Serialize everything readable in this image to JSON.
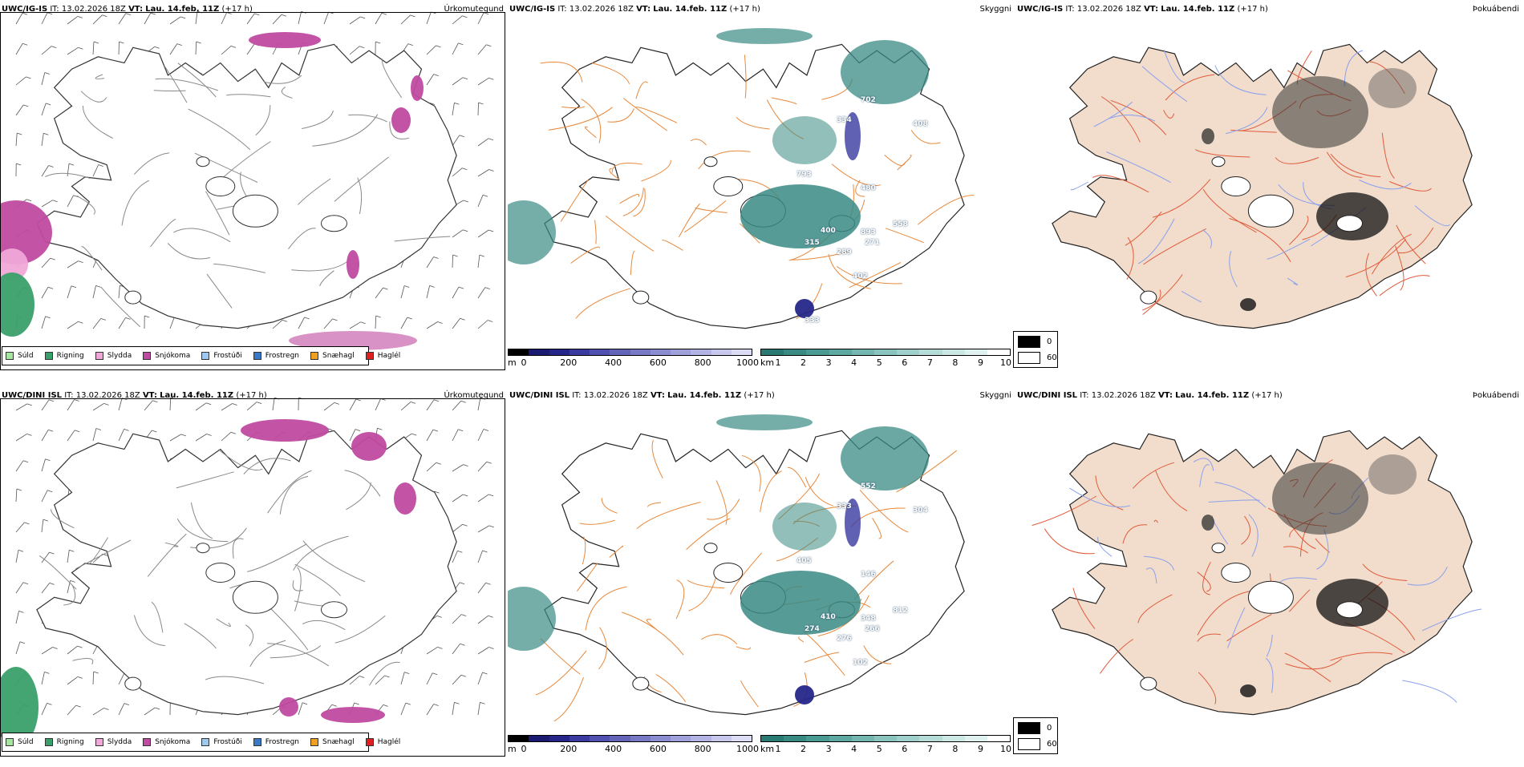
{
  "rows": [
    {
      "model": "UWC/IG-IS",
      "it_label": "IT:",
      "it_value": "13.02.2026 18Z",
      "vt_label": "VT:",
      "vt_value": "Lau. 14.feb. 11Z",
      "lead": "(+17 h)",
      "panels": {
        "precip_title": "Úrkomutegund",
        "vis_title": "Skyggni",
        "cloud_title": "Þokuábendi"
      },
      "elevation_labels": [
        "334",
        "408",
        "702",
        "793",
        "480",
        "400",
        "893",
        "558",
        "315",
        "271",
        "289",
        "402",
        "333"
      ]
    },
    {
      "model": "UWC/DINI ISL",
      "it_label": "IT:",
      "it_value": "13.02.2026 18Z",
      "vt_label": "VT:",
      "vt_value": "Lau. 14.feb. 11Z",
      "lead": "(+17 h)",
      "panels": {
        "precip_title": "Úrkomutegund",
        "vis_title": "Skyggni",
        "cloud_title": "Þokuábendi"
      },
      "elevation_labels": [
        "333",
        "304",
        "552",
        "405",
        "146",
        "410",
        "348",
        "812",
        "274",
        "266",
        "276",
        "102"
      ]
    }
  ],
  "precip_legend": [
    {
      "label": "Súld",
      "color": "#a6e6a0"
    },
    {
      "label": "Rigning",
      "color": "#3aa06a"
    },
    {
      "label": "Slydda",
      "color": "#f0a8d8"
    },
    {
      "label": "Snjókoma",
      "color": "#c04aa0"
    },
    {
      "label": "Frostúði",
      "color": "#9ec8f0"
    },
    {
      "label": "Frostregn",
      "color": "#3a78c8"
    },
    {
      "label": "Snæhagl",
      "color": "#f0a020"
    },
    {
      "label": "Haglél",
      "color": "#e02020"
    }
  ],
  "elev_colorbar": {
    "unit": "m",
    "ticks": [
      "0",
      "200",
      "400",
      "600",
      "800",
      "1000"
    ],
    "colors": [
      "#000000",
      "#1a1a70",
      "#26268a",
      "#3a3aa0",
      "#5050b0",
      "#6464b8",
      "#7878c4",
      "#8c8cd0",
      "#a0a0da",
      "#b4b4e4",
      "#c8c8ec",
      "#dcdcf4"
    ]
  },
  "vis_colorbar": {
    "unit": "km",
    "ticks": [
      "1",
      "2",
      "3",
      "4",
      "5",
      "6",
      "7",
      "8",
      "9",
      "10"
    ],
    "colors": [
      "#2a7a74",
      "#3a8a84",
      "#4a9a94",
      "#5ea8a2",
      "#74b6b0",
      "#8ac4be",
      "#a0d0cb",
      "#b6dcd8",
      "#cce8e4",
      "#e0f2f0",
      "#ffffff"
    ]
  },
  "cloud_legend": [
    {
      "label": "0",
      "color": "#000000"
    },
    {
      "label": "60",
      "color": "#ffffff"
    }
  ]
}
